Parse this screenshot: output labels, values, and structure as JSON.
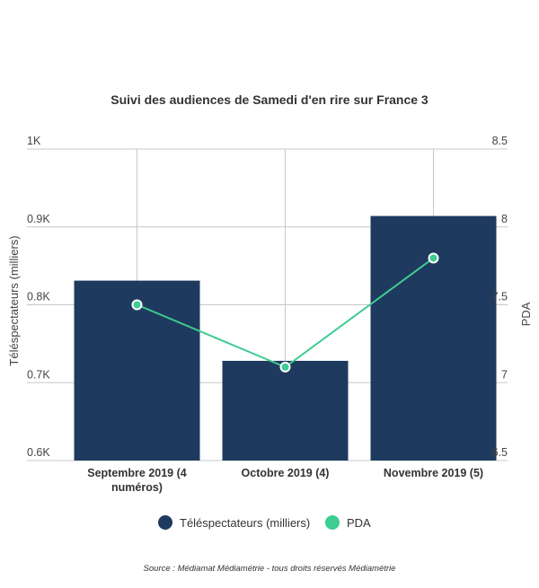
{
  "chart_data": {
    "type": "bar",
    "title": "Suivi des audiences de Samedi d'en rire sur France 3",
    "categories": [
      "Septembre 2019 (4 numéros)",
      "Octobre 2019 (4)",
      "Novembre 2019 (5)"
    ],
    "category_lines": [
      [
        "Septembre 2019 (4",
        "numéros)"
      ],
      [
        "Octobre 2019 (4)"
      ],
      [
        "Novembre 2019 (5)"
      ]
    ],
    "series": [
      {
        "name": "Téléspectateurs (milliers)",
        "type": "bar",
        "axis": "left",
        "color": "#1f3a5f",
        "values": [
          0.831,
          0.728,
          0.914
        ]
      },
      {
        "name": "PDA",
        "type": "line",
        "axis": "right",
        "color": "#3dcc91",
        "values": [
          7.5,
          7.1,
          7.8
        ]
      }
    ],
    "ylabel": "Téléspectateurs (milliers)",
    "ylabel_right": "PDA",
    "ylim": [
      0.6,
      1.0
    ],
    "yticks": [
      "0.6K",
      "0.7K",
      "0.8K",
      "0.9K",
      "1K"
    ],
    "ylim_right": [
      6.5,
      8.5
    ],
    "yticks_right": [
      "6.5",
      "7",
      "7.5",
      "8",
      "8.5"
    ],
    "grid": true,
    "legend_position": "bottom",
    "source": "Source : Médiamat Médiamétrie - tous droits réservés Médiamétrie"
  }
}
